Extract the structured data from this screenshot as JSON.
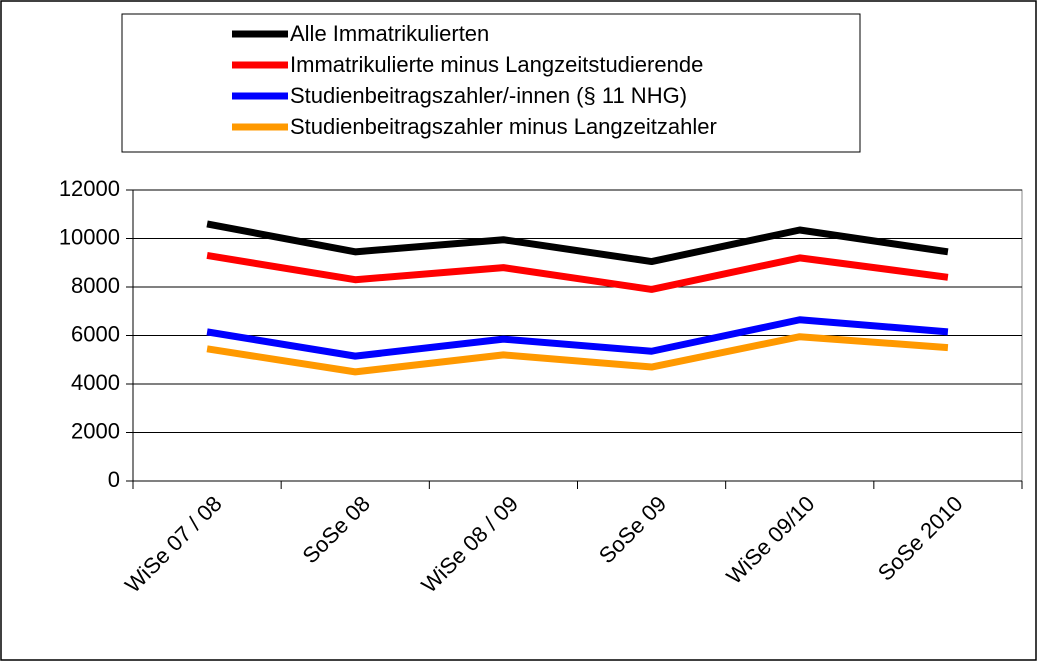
{
  "chart_data": {
    "type": "line",
    "categories": [
      "WiSe 07 / 08",
      "SoSe 08",
      "WiSe 08 / 09",
      "SoSe 09",
      "WiSe 09/10",
      "SoSe 2010"
    ],
    "series": [
      {
        "name": "Alle Immatrikulierten",
        "color": "#000000",
        "values": [
          10600,
          9450,
          9950,
          9050,
          10350,
          9450
        ]
      },
      {
        "name": "Immatrikulierte minus Langzeitstudierende",
        "color": "#ff0000",
        "values": [
          9300,
          8300,
          8800,
          7900,
          9200,
          8400
        ]
      },
      {
        "name": "Studienbeitragszahler/-innen (§ 11 NHG)",
        "color": "#0000ff",
        "values": [
          6150,
          5150,
          5850,
          5350,
          6650,
          6150
        ]
      },
      {
        "name": "Studienbeitragszahler minus Langzeitzahler",
        "color": "#ff9900",
        "values": [
          5450,
          4500,
          5200,
          4700,
          5950,
          5500
        ]
      }
    ],
    "ylim": [
      0,
      12000
    ],
    "yticks": [
      0,
      2000,
      4000,
      6000,
      8000,
      10000,
      12000
    ],
    "grid": true,
    "legend": "top"
  }
}
